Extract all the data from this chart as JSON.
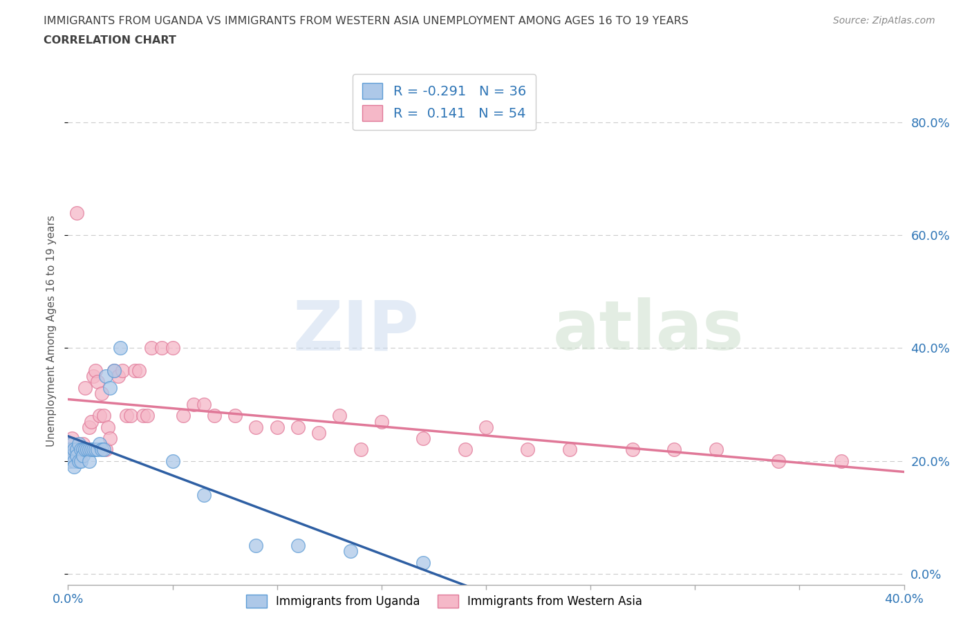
{
  "title_line1": "IMMIGRANTS FROM UGANDA VS IMMIGRANTS FROM WESTERN ASIA UNEMPLOYMENT AMONG AGES 16 TO 19 YEARS",
  "title_line2": "CORRELATION CHART",
  "source": "Source: ZipAtlas.com",
  "ylabel": "Unemployment Among Ages 16 to 19 years",
  "xlim": [
    0.0,
    0.4
  ],
  "ylim": [
    -0.02,
    0.88
  ],
  "xticks": [
    0.0,
    0.05,
    0.1,
    0.15,
    0.2,
    0.25,
    0.3,
    0.35,
    0.4
  ],
  "ytick_right_values": [
    0.0,
    0.2,
    0.4,
    0.6,
    0.8
  ],
  "uganda_R": -0.291,
  "uganda_N": 36,
  "western_asia_R": 0.141,
  "western_asia_N": 54,
  "uganda_color": "#adc8e8",
  "western_asia_color": "#f5b8c8",
  "uganda_edge_color": "#5b9bd5",
  "western_asia_edge_color": "#e07898",
  "uganda_line_color": "#2e5fa3",
  "western_asia_line_color": "#e07898",
  "legend_R_color": "#2e75b6",
  "watermark_zip": "ZIP",
  "watermark_atlas": "atlas",
  "background_color": "#ffffff",
  "grid_color": "#cccccc",
  "title_color": "#404040",
  "source_color": "#888888",
  "uganda_x": [
    0.001,
    0.001,
    0.002,
    0.002,
    0.003,
    0.003,
    0.003,
    0.004,
    0.004,
    0.005,
    0.005,
    0.006,
    0.006,
    0.007,
    0.007,
    0.008,
    0.009,
    0.01,
    0.01,
    0.011,
    0.012,
    0.013,
    0.014,
    0.015,
    0.016,
    0.017,
    0.018,
    0.02,
    0.022,
    0.025,
    0.05,
    0.065,
    0.09,
    0.11,
    0.135,
    0.17
  ],
  "uganda_y": [
    0.22,
    0.2,
    0.23,
    0.21,
    0.22,
    0.2,
    0.19,
    0.22,
    0.21,
    0.23,
    0.2,
    0.22,
    0.2,
    0.22,
    0.21,
    0.22,
    0.22,
    0.22,
    0.2,
    0.22,
    0.22,
    0.22,
    0.22,
    0.23,
    0.22,
    0.22,
    0.35,
    0.33,
    0.36,
    0.4,
    0.2,
    0.14,
    0.05,
    0.05,
    0.04,
    0.02
  ],
  "western_asia_x": [
    0.001,
    0.002,
    0.003,
    0.004,
    0.005,
    0.006,
    0.007,
    0.008,
    0.009,
    0.01,
    0.011,
    0.012,
    0.013,
    0.014,
    0.015,
    0.016,
    0.017,
    0.018,
    0.019,
    0.02,
    0.022,
    0.024,
    0.026,
    0.028,
    0.03,
    0.032,
    0.034,
    0.036,
    0.038,
    0.04,
    0.045,
    0.05,
    0.055,
    0.06,
    0.065,
    0.07,
    0.08,
    0.09,
    0.1,
    0.11,
    0.12,
    0.13,
    0.14,
    0.15,
    0.17,
    0.19,
    0.2,
    0.22,
    0.24,
    0.27,
    0.29,
    0.31,
    0.34,
    0.37
  ],
  "western_asia_y": [
    0.22,
    0.24,
    0.22,
    0.64,
    0.22,
    0.22,
    0.23,
    0.33,
    0.22,
    0.26,
    0.27,
    0.35,
    0.36,
    0.34,
    0.28,
    0.32,
    0.28,
    0.22,
    0.26,
    0.24,
    0.36,
    0.35,
    0.36,
    0.28,
    0.28,
    0.36,
    0.36,
    0.28,
    0.28,
    0.4,
    0.4,
    0.4,
    0.28,
    0.3,
    0.3,
    0.28,
    0.28,
    0.26,
    0.26,
    0.26,
    0.25,
    0.28,
    0.22,
    0.27,
    0.24,
    0.22,
    0.26,
    0.22,
    0.22,
    0.22,
    0.22,
    0.22,
    0.2,
    0.2
  ]
}
